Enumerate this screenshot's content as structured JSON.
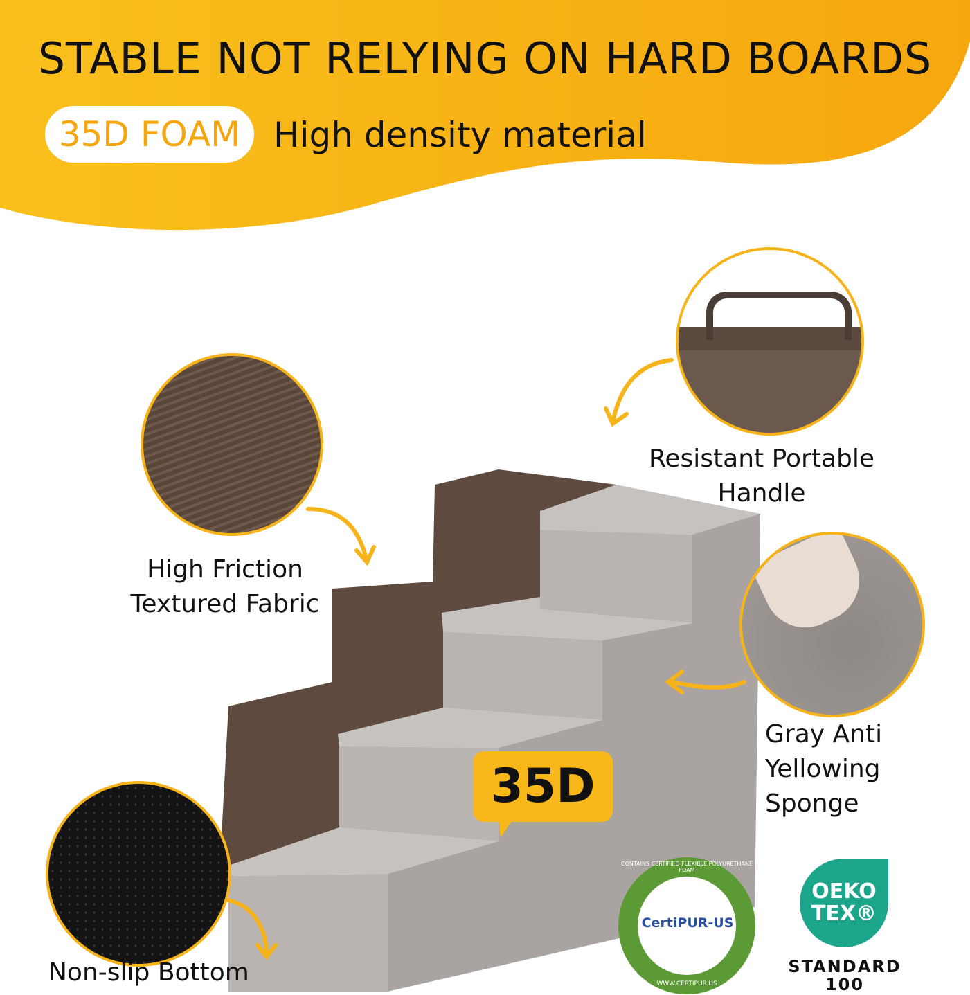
{
  "header": {
    "title": "STABLE NOT RELYING ON HARD BOARDS",
    "pill": "35D FOAM",
    "subtitle": "High density material"
  },
  "callouts": {
    "fabric": "High Friction Textured Fabric",
    "handle": "Resistant Portable Handle",
    "sponge": "Gray Anti Yellowing Sponge",
    "bottom": "Non-slip Bottom",
    "density": "35D"
  },
  "certifications": {
    "certipur": {
      "name": "CertiPUR-US",
      "ring_text": "CONTAINS CERTIFIED FLEXIBLE POLYURETHANE FOAM",
      "url_text": "WWW.CERTIPUR.US"
    },
    "oeko": {
      "line1": "OEKO",
      "line2": "TEX®",
      "standard": "STANDARD",
      "number": "100"
    }
  },
  "colors": {
    "accent": "#f6b31a",
    "fabric": "#5e4a3e",
    "foam": "#b9b4b1",
    "oeko": "#1ba58a",
    "certipur_ring": "#5c9a35"
  }
}
